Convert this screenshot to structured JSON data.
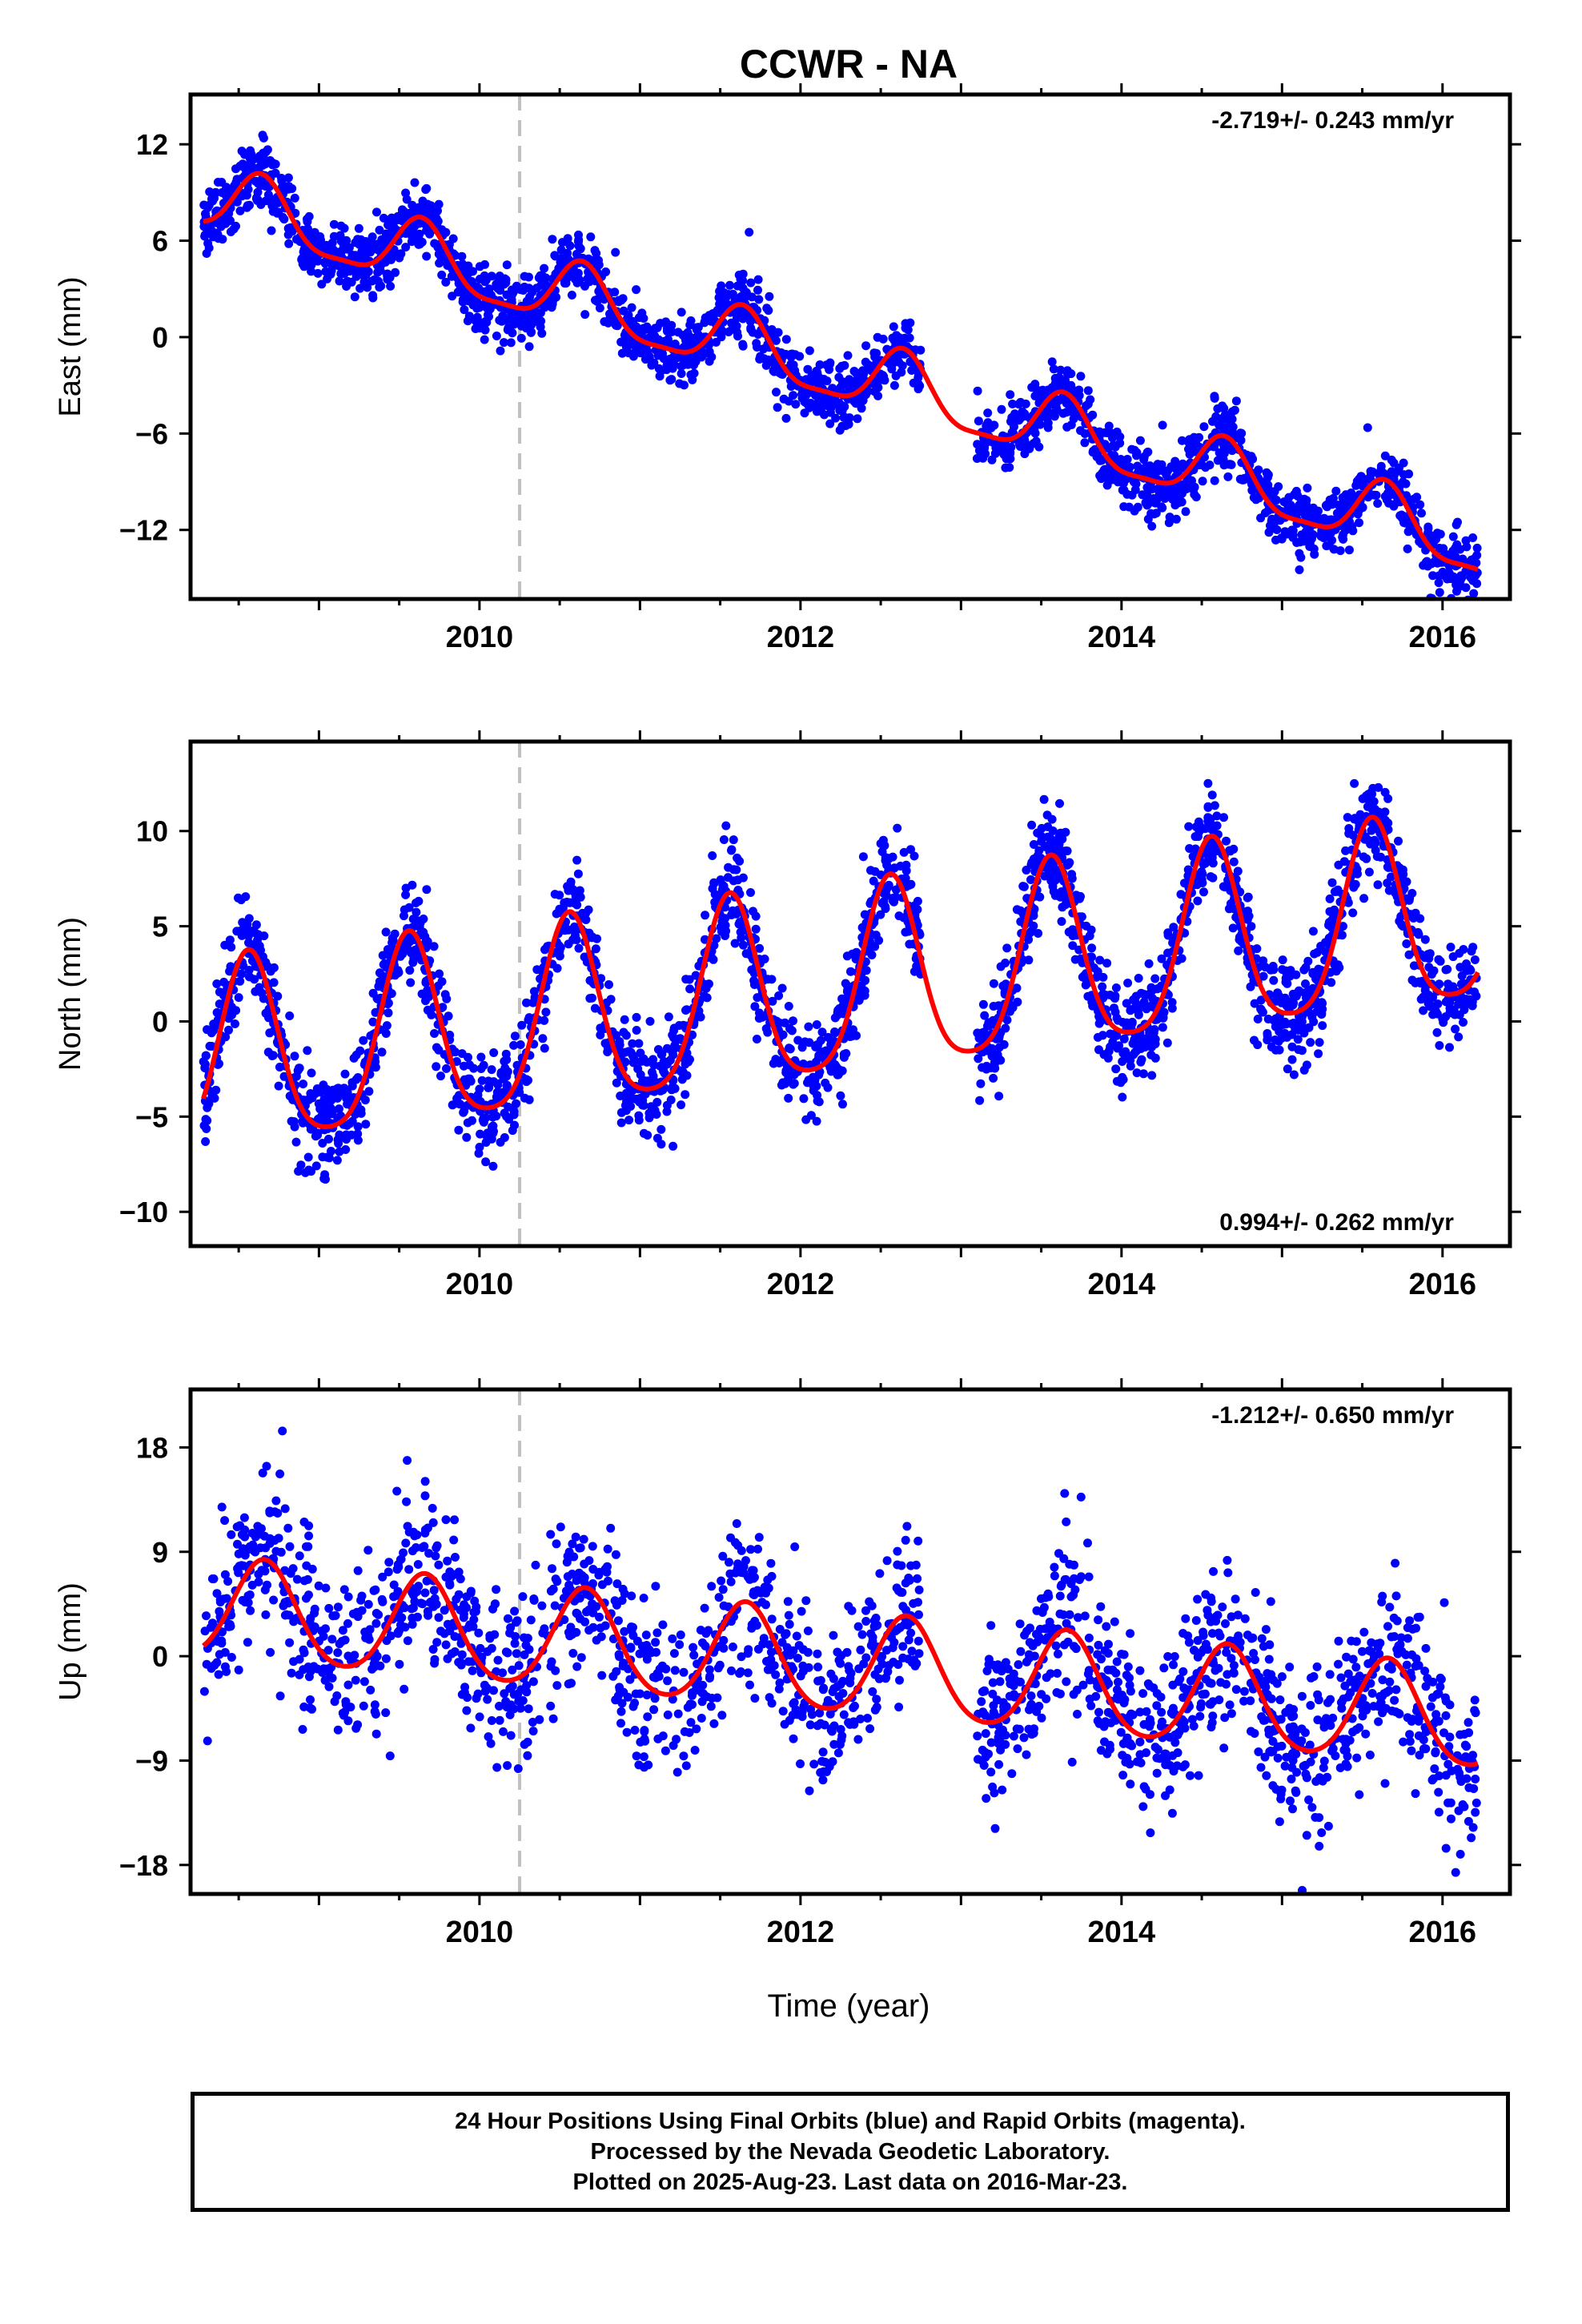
{
  "title": "CCWR - NA",
  "xlabel": "Time (year)",
  "colors": {
    "data": "#0000ff",
    "fit": "#ff0000",
    "event_line": "#c0c0c0",
    "frame": "#000000"
  },
  "footer": {
    "line1": "24 Hour Positions Using Final Orbits (blue) and Rapid Orbits (magenta).",
    "line2": "Processed by the Nevada Geodetic Laboratory.",
    "line3": "Plotted on 2025-Aug-23. Last data on 2016-Mar-23."
  },
  "chart_data": [
    {
      "type": "scatter",
      "component": "east",
      "ylabel": "East (mm)",
      "xlim": [
        2008.2,
        2016.42
      ],
      "ylim": [
        -16.3,
        15.1
      ],
      "yticks": [
        12,
        6,
        0,
        -6,
        -12
      ],
      "yticklabels": [
        "12",
        "6",
        "0",
        "−6",
        "−12"
      ],
      "xticks": [
        2010,
        2012,
        2014,
        2016
      ],
      "xticklabels": [
        "2010",
        "2012",
        "2014",
        "2016"
      ],
      "event_line_x": 2010.25,
      "rate_label": "-2.719+/- 0.243 mm/yr",
      "rate_label_position": "top-right",
      "fit": {
        "t0": 2008.28,
        "t1": 2016.22,
        "y0": 8.6,
        "rate": -2.719,
        "annual_amp": 2.0,
        "annual_phase_peak": 0.64,
        "semiannual_amp": 0.55
      },
      "scatter": {
        "noise": 1.0,
        "count": 2600,
        "gap": [
          2012.75,
          2013.1
        ],
        "start": 2008.28,
        "end": 2016.22
      }
    },
    {
      "type": "scatter",
      "component": "north",
      "ylabel": "North (mm)",
      "xlim": [
        2008.2,
        2016.42
      ],
      "ylim": [
        -11.8,
        14.7
      ],
      "yticks": [
        10,
        5,
        0,
        -5,
        -10
      ],
      "yticklabels": [
        "10",
        "5",
        "0",
        "−5",
        "−10"
      ],
      "xticks": [
        2010,
        2012,
        2014,
        2016
      ],
      "xticklabels": [
        "2010",
        "2012",
        "2014",
        "2016"
      ],
      "event_line_x": 2010.25,
      "rate_label": "0.994+/- 0.262 mm/yr",
      "rate_label_position": "bottom-right",
      "fit": {
        "t0": 2008.28,
        "t1": 2016.22,
        "y0": -2.3,
        "rate": 0.994,
        "annual_amp": 4.9,
        "annual_phase_peak": 0.56,
        "semiannual_amp": 0.9
      },
      "scatter": {
        "noise": 1.3,
        "count": 2600,
        "gap": [
          2012.75,
          2013.1
        ],
        "start": 2008.28,
        "end": 2016.22
      }
    },
    {
      "type": "scatter",
      "component": "up",
      "ylabel": "Up (mm)",
      "xlim": [
        2008.2,
        2016.42
      ],
      "ylim": [
        -20.5,
        23.0
      ],
      "yticks": [
        18,
        9,
        0,
        -9,
        -18
      ],
      "yticklabels": [
        "18",
        "9",
        "0",
        "−9",
        "−18"
      ],
      "xticks": [
        2010,
        2012,
        2014,
        2016
      ],
      "xticklabels": [
        "2010",
        "2012",
        "2014",
        "2016"
      ],
      "event_line_x": 2010.25,
      "rate_label": "-1.212+/- 0.650 mm/yr",
      "rate_label_position": "top-right",
      "fit": {
        "t0": 2008.28,
        "t1": 2016.22,
        "y0": 4.0,
        "rate": -1.212,
        "annual_amp": 4.3,
        "annual_phase_peak": 0.66,
        "semiannual_amp": 0.5
      },
      "scatter": {
        "noise": 3.6,
        "count": 2000,
        "gap": [
          2012.75,
          2013.1
        ],
        "start": 2008.28,
        "end": 2016.22
      }
    }
  ]
}
